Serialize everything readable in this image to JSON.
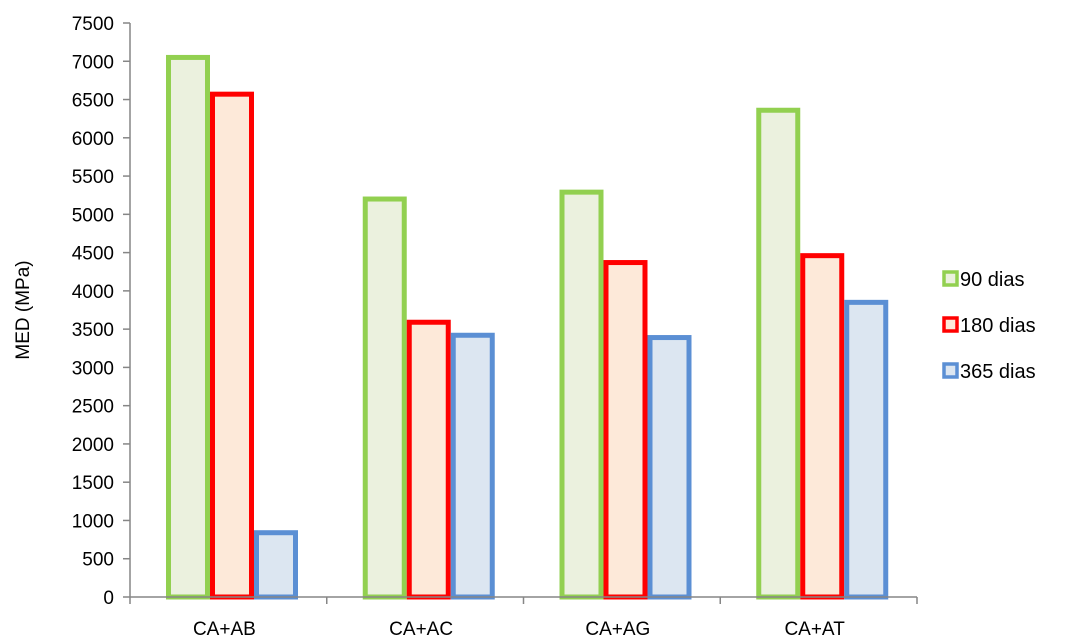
{
  "chart_data": {
    "type": "bar",
    "title": "",
    "xlabel": "",
    "ylabel": "MED (MPa)",
    "ylim": [
      0,
      7500
    ],
    "ytick_step": 500,
    "yticks": [
      "0",
      "500",
      "1000",
      "1500",
      "2000",
      "2500",
      "3000",
      "3500",
      "4000",
      "4500",
      "5000",
      "5500",
      "6000",
      "6500",
      "7000",
      "7500"
    ],
    "grid": false,
    "legend_position": "right",
    "categories": [
      "CA+AB",
      "CA+AC",
      "CA+AG",
      "CA+AT"
    ],
    "series": [
      {
        "name": "90 dias",
        "values": [
          7050,
          5200,
          5290,
          6360
        ],
        "stroke": "#92d050",
        "fill": "#ebf1de"
      },
      {
        "name": "180 dias",
        "values": [
          6570,
          3590,
          4370,
          4460
        ],
        "stroke": "#ff0000",
        "fill": "#fde9d9"
      },
      {
        "name": "365 dias",
        "values": [
          840,
          3420,
          3390,
          3850
        ],
        "stroke": "#5b8fd4",
        "fill": "#dce6f1"
      }
    ]
  }
}
